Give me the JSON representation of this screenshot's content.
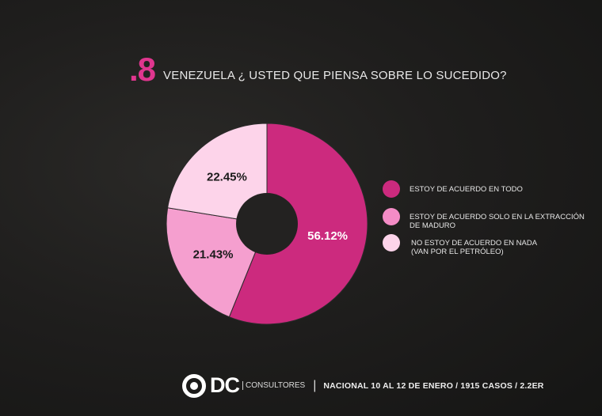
{
  "question": {
    "number": ".8",
    "text": "VENEZUELA ¿ USTED QUE PIENSA SOBRE LO SUCEDIDO?"
  },
  "legend": [
    {
      "label_line1": "ESTOY DE ACUERDO EN TODO",
      "label_line2": "",
      "color": "#cc2a7e"
    },
    {
      "label_line1": "ESTOY DE ACUERDO SOLO EN LA EXTRACCIÓN",
      "label_line2": "DE MADURO",
      "color": "#f48cc6"
    },
    {
      "label_line1": "NO ESTOY DE ACUERDO EN NADA",
      "label_line2": "(VAN POR EL PETRÓLEO)",
      "color": "#fdd4ea"
    }
  ],
  "footer": {
    "logo_text": "DC",
    "logo_sub": "CONSULTORES",
    "separator": "|",
    "info": "NACIONAL  10 AL 12 DE ENERO / 1915 CASOS / 2.2ER"
  },
  "chart_data": {
    "type": "pie",
    "variant": "donut",
    "title": "VENEZUELA ¿ USTED QUE PIENSA SOBRE LO SUCEDIDO?",
    "categories": [
      "ESTOY DE ACUERDO EN TODO",
      "ESTOY DE ACUERDO SOLO EN LA EXTRACCIÓN DE MADURO",
      "NO ESTOY DE ACUERDO EN NADA (VAN POR EL PETRÓLEO)"
    ],
    "values": [
      56.12,
      21.43,
      22.45
    ],
    "labels": [
      "56.12%",
      "21.43%",
      "22.45%"
    ],
    "colors": [
      "#cc2a7e",
      "#f59fcf",
      "#fdd4ea"
    ],
    "legend_position": "right"
  }
}
